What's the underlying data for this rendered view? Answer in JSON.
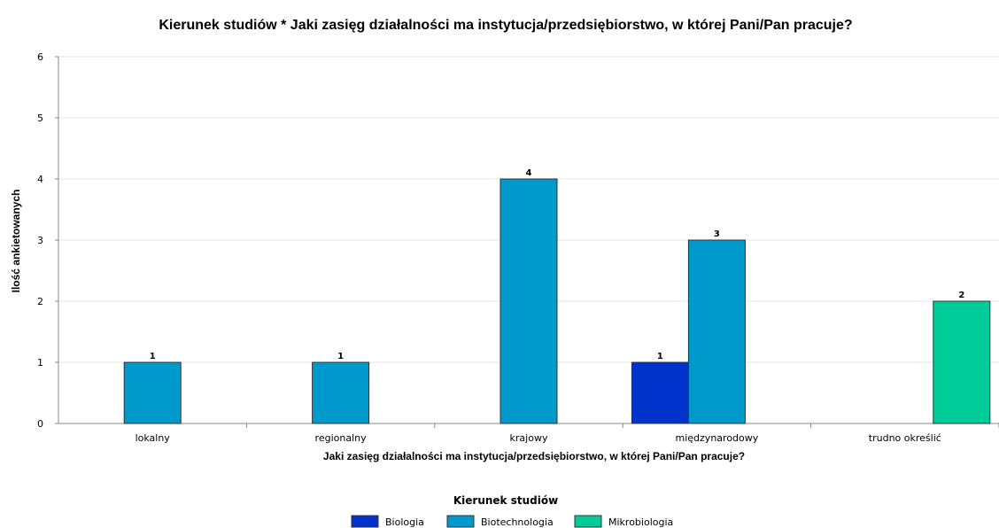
{
  "chart_data": {
    "type": "bar",
    "title": "Kierunek studiów * Jaki zasięg działalności ma instytucja/przedsiębiorstwo, w której Pani/Pan pracuje?",
    "xlabel": "Jaki zasięg działalności ma instytucja/przedsiębiorstwo, w której Pani/Pan pracuje?",
    "ylabel": "Ilość ankietowanych",
    "ylim": [
      0,
      6
    ],
    "yticks": [
      0,
      1,
      2,
      3,
      4,
      5,
      6
    ],
    "grid": true,
    "categories": [
      "lokalny",
      "regionalny",
      "krajowy",
      "międzynarodowy",
      "trudno określić"
    ],
    "series": [
      {
        "name": "Biologia",
        "color": "#0033cc",
        "values": [
          null,
          null,
          null,
          1,
          null
        ]
      },
      {
        "name": "Biotechnologia",
        "color": "#0099cc",
        "values": [
          1,
          1,
          4,
          3,
          null
        ]
      },
      {
        "name": "Mikrobiologia",
        "color": "#00cc99",
        "values": [
          null,
          null,
          null,
          null,
          2
        ]
      }
    ],
    "legend": {
      "title": "Kierunek studiów",
      "placement": "bottom-center"
    }
  }
}
